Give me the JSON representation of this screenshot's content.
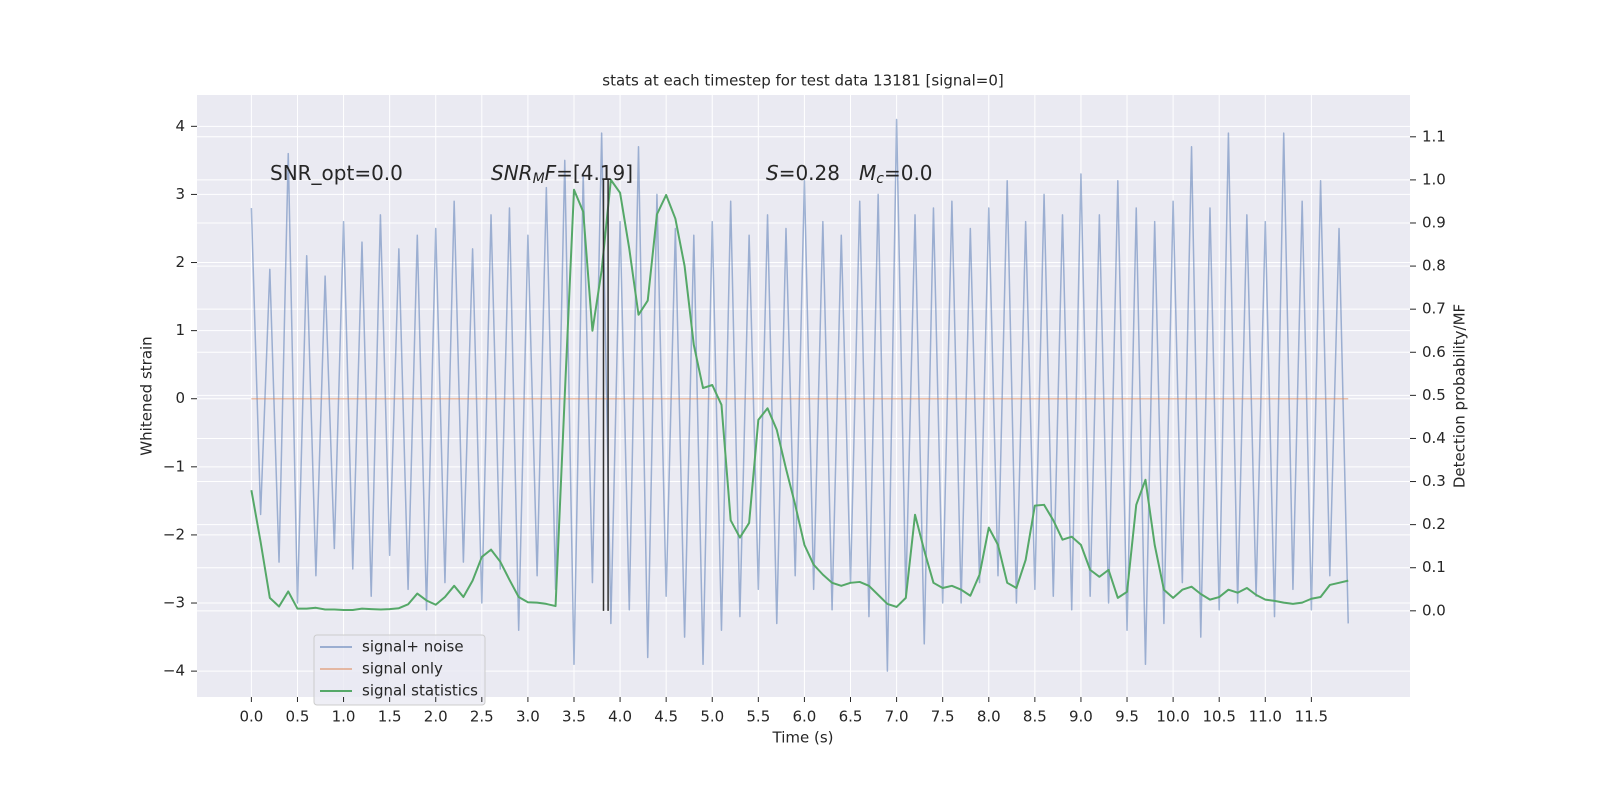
{
  "chart_data": {
    "type": "line",
    "title": "stats at each timestep for test data 13181 [signal=0]",
    "xlabel": "Time (s)",
    "ylabel": "Whitened strain",
    "y2label": "Detection probability/MF",
    "annotations": [
      [
        "SNR_opt=0.0"
      ],
      [
        "SNR",
        "M",
        "F",
        "=[4.19]"
      ],
      [
        "S",
        "=0.28",
        "M",
        "c",
        "=0.0"
      ]
    ],
    "grid": true,
    "xlim": [
      -0.59,
      12.57
    ],
    "ylim": [
      -4.38,
      4.46
    ],
    "y2lim": [
      -0.2,
      1.197
    ],
    "xticks": [
      {
        "value": 0,
        "label": "0.0"
      },
      0.5,
      {
        "value": 1,
        "label": "1.0"
      },
      1.5,
      {
        "value": 2,
        "label": "2.0"
      },
      2.5,
      {
        "value": 3,
        "label": "3.0"
      },
      3.5,
      {
        "value": 4,
        "label": "4.0"
      },
      4.5,
      {
        "value": 5,
        "label": "5.0"
      },
      5.5,
      {
        "value": 6,
        "label": "6.0"
      },
      6.5,
      {
        "value": 7,
        "label": "7.0"
      },
      7.5,
      {
        "value": 8,
        "label": "8.0"
      },
      8.5,
      {
        "value": 9,
        "label": "9.0"
      },
      9.5,
      {
        "value": 10,
        "label": "10.0"
      },
      10.5,
      {
        "value": 11,
        "label": "11.0"
      },
      11.5
    ],
    "yticks": [
      {
        "value": -4,
        "label": "−4"
      },
      {
        "value": -3,
        "label": "−3"
      },
      {
        "value": -2,
        "label": "−2"
      },
      {
        "value": -1,
        "label": "−1"
      },
      0,
      1,
      2,
      3,
      4
    ],
    "y2ticks": [
      {
        "value": 0,
        "label": "0.0"
      },
      0.1,
      0.2,
      0.3,
      0.4,
      0.5,
      0.6,
      0.7,
      0.8,
      0.9,
      {
        "value": 1,
        "label": "1.0"
      },
      1.1
    ],
    "vlines": {
      "x": [
        3.82,
        3.87
      ],
      "y2range": [
        0,
        1.0
      ],
      "color": "#333333"
    },
    "x": [
      0.0,
      0.1,
      0.2,
      0.3,
      0.4,
      0.5,
      0.6,
      0.7,
      0.8,
      0.9,
      1.0,
      1.1,
      1.2,
      1.3,
      1.4,
      1.5,
      1.6,
      1.7,
      1.8,
      1.9,
      2.0,
      2.1,
      2.2,
      2.3,
      2.4,
      2.5,
      2.6,
      2.7,
      2.8,
      2.9,
      3.0,
      3.1,
      3.2,
      3.3,
      3.4,
      3.5,
      3.6,
      3.7,
      3.8,
      3.9,
      4.0,
      4.1,
      4.2,
      4.3,
      4.4,
      4.5,
      4.6,
      4.7,
      4.8,
      4.9,
      5.0,
      5.1,
      5.2,
      5.3,
      5.4,
      5.5,
      5.6,
      5.7,
      5.8,
      5.9,
      6.0,
      6.1,
      6.2,
      6.3,
      6.4,
      6.5,
      6.6,
      6.7,
      6.8,
      6.9,
      7.0,
      7.1,
      7.2,
      7.3,
      7.4,
      7.5,
      7.6,
      7.7,
      7.8,
      7.9,
      8.0,
      8.1,
      8.2,
      8.3,
      8.4,
      8.5,
      8.6,
      8.7,
      8.8,
      8.9,
      9.0,
      9.1,
      9.2,
      9.3,
      9.4,
      9.5,
      9.6,
      9.7,
      9.8,
      9.9,
      10.0,
      10.1,
      10.2,
      10.3,
      10.4,
      10.5,
      10.6,
      10.7,
      10.8,
      10.9,
      11.0,
      11.1,
      11.2,
      11.3,
      11.4,
      11.5,
      11.6,
      11.7,
      11.8,
      11.9
    ],
    "series": [
      {
        "name": "signal+ noise",
        "color": "#4c72b0",
        "values": [
          2.8,
          -1.7,
          1.9,
          -2.4,
          3.6,
          -3.0,
          2.1,
          -2.6,
          1.8,
          -2.2,
          2.6,
          -2.5,
          2.3,
          -2.9,
          2.7,
          -2.3,
          2.2,
          -2.8,
          2.4,
          -3.1,
          2.5,
          -2.7,
          2.9,
          -2.4,
          2.2,
          -3.0,
          2.7,
          -2.5,
          2.8,
          -3.4,
          2.4,
          -2.6,
          3.1,
          -2.8,
          3.5,
          -3.9,
          3.3,
          -2.7,
          3.9,
          -3.3,
          2.6,
          -3.1,
          3.7,
          -3.8,
          3.0,
          -2.9,
          2.5,
          -3.5,
          2.4,
          -3.9,
          2.6,
          -3.4,
          2.9,
          -3.2,
          2.4,
          -2.8,
          2.7,
          -3.3,
          2.5,
          -2.6,
          3.2,
          -2.8,
          2.6,
          -3.1,
          2.4,
          -2.7,
          2.9,
          -3.2,
          3.0,
          -4.0,
          4.1,
          -2.9,
          2.7,
          -3.6,
          2.8,
          -3.0,
          2.9,
          -3.0,
          2.5,
          -2.7,
          2.8,
          -2.6,
          3.2,
          -3.0,
          2.6,
          -2.8,
          3.0,
          -2.9,
          2.7,
          -3.1,
          3.3,
          -2.9,
          2.7,
          -3.0,
          3.2,
          -3.4,
          2.8,
          -3.9,
          2.6,
          -3.3,
          2.9,
          -2.7,
          3.7,
          -3.5,
          2.8,
          -3.1,
          3.9,
          -3.0,
          2.7,
          -2.9,
          2.6,
          -3.2,
          3.9,
          -2.8,
          2.9,
          -3.1,
          3.2,
          -2.6,
          2.5,
          -3.3
        ]
      },
      {
        "name": "signal only",
        "color": "#dd8452",
        "values": [
          0,
          0,
          0,
          0,
          0,
          0,
          0,
          0,
          0,
          0,
          0,
          0,
          0,
          0,
          0,
          0,
          0,
          0,
          0,
          0,
          0,
          0,
          0,
          0,
          0,
          0,
          0,
          0,
          0,
          0,
          0,
          0,
          0,
          0,
          0,
          0,
          0,
          0,
          0,
          0,
          0,
          0,
          0,
          0,
          0,
          0,
          0,
          0,
          0,
          0,
          0,
          0,
          0,
          0,
          0,
          0,
          0,
          0,
          0,
          0,
          0,
          0,
          0,
          0,
          0,
          0,
          0,
          0,
          0,
          0,
          0,
          0,
          0,
          0,
          0,
          0,
          0,
          0,
          0,
          0,
          0,
          0,
          0,
          0,
          0,
          0,
          0,
          0,
          0,
          0,
          0,
          0,
          0,
          0,
          0,
          0,
          0,
          0,
          0,
          0,
          0,
          0,
          0,
          0,
          0,
          0,
          0,
          0,
          0,
          0,
          0,
          0,
          0,
          0,
          0,
          0,
          0,
          0,
          0,
          0
        ]
      },
      {
        "name": "signal statistics",
        "color": "#55a868",
        "axis": "y2",
        "values": [
          0.28,
          0.16,
          0.03,
          0.01,
          0.045,
          0.005,
          0.005,
          0.007,
          0.003,
          0.003,
          0.002,
          0.002,
          0.005,
          0.004,
          0.003,
          0.004,
          0.006,
          0.015,
          0.04,
          0.024,
          0.014,
          0.032,
          0.058,
          0.032,
          0.07,
          0.125,
          0.142,
          0.114,
          0.072,
          0.032,
          0.02,
          0.019,
          0.016,
          0.011,
          0.5,
          0.977,
          0.926,
          0.65,
          0.79,
          1.0,
          0.97,
          0.84,
          0.687,
          0.72,
          0.92,
          0.965,
          0.91,
          0.8,
          0.617,
          0.517,
          0.524,
          0.478,
          0.21,
          0.17,
          0.204,
          0.443,
          0.47,
          0.42,
          0.33,
          0.246,
          0.153,
          0.107,
          0.084,
          0.065,
          0.058,
          0.065,
          0.067,
          0.058,
          0.037,
          0.016,
          0.009,
          0.03,
          0.223,
          0.14,
          0.065,
          0.053,
          0.058,
          0.049,
          0.035,
          0.084,
          0.193,
          0.153,
          0.065,
          0.053,
          0.118,
          0.244,
          0.246,
          0.21,
          0.165,
          0.172,
          0.153,
          0.095,
          0.079,
          0.095,
          0.03,
          0.044,
          0.246,
          0.304,
          0.153,
          0.049,
          0.03,
          0.049,
          0.056,
          0.039,
          0.026,
          0.032,
          0.049,
          0.042,
          0.053,
          0.037,
          0.026,
          0.023,
          0.019,
          0.016,
          0.019,
          0.028,
          0.032,
          0.06,
          0.065,
          0.07
        ]
      }
    ]
  }
}
